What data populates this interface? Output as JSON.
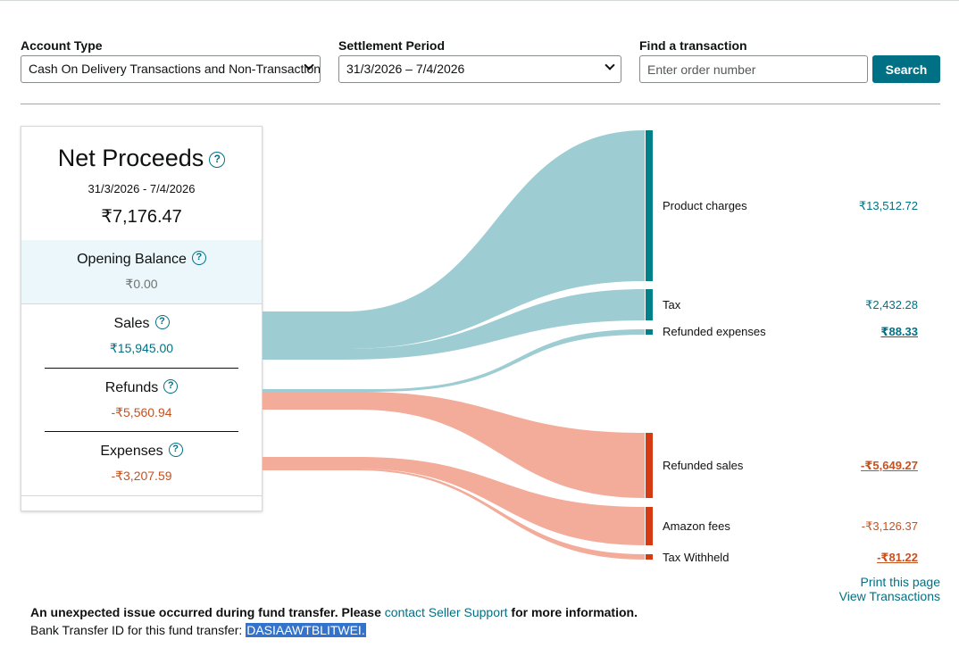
{
  "filters": {
    "account_type_label": "Account Type",
    "account_type_value": "Cash On Delivery Transactions and Non-Transactions",
    "settlement_label": "Settlement Period",
    "settlement_value": "31/3/2026 – 7/4/2026",
    "find_label": "Find a transaction",
    "find_placeholder": "Enter order number",
    "search_label": "Search"
  },
  "summary": {
    "title": "Net Proceeds",
    "help": "?",
    "date_range": "31/3/2026 - 7/4/2026",
    "net_amount": "₹7,176.47",
    "opening_label": "Opening Balance",
    "opening_amount": "₹0.00",
    "sales_label": "Sales",
    "sales_amount": "₹15,945.00",
    "refunds_label": "Refunds",
    "refunds_amount": "-₹5,560.94",
    "expenses_label": "Expenses",
    "expenses_amount": "-₹3,207.59"
  },
  "breakdown": {
    "product_charges_label": "Product charges",
    "product_charges_value": "₹13,512.72",
    "tax_label": "Tax",
    "tax_value": "₹2,432.28",
    "refunded_expenses_label": "Refunded expenses",
    "refunded_expenses_value": "₹88.33",
    "refunded_sales_label": "Refunded sales",
    "refunded_sales_value": "-₹5,649.27",
    "amazon_fees_label": "Amazon fees",
    "amazon_fees_value": "-₹3,126.37",
    "tax_withheld_label": "Tax Withheld",
    "tax_withheld_value": "-₹81.22"
  },
  "colors": {
    "positive_flow": "#9dcdd3",
    "positive_bar": "#00818a",
    "negative_flow": "#f3ab9a",
    "negative_bar": "#d63a12"
  },
  "links": {
    "print": "Print this page",
    "view": "View Transactions"
  },
  "notice": {
    "error_prefix": "An unexpected issue occurred during fund transfer. Please",
    "support_link": "contact Seller Support",
    "error_suffix": "for more information.",
    "bank_label": "Bank Transfer ID for this fund transfer:",
    "bank_id": "DASIAAWTBLITWEI."
  }
}
